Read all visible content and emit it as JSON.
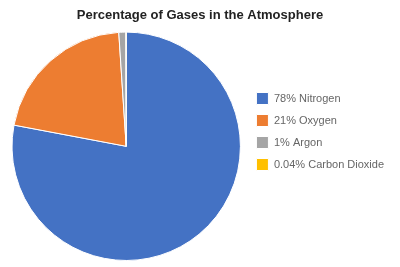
{
  "chart_data": {
    "type": "pie",
    "title": "Percentage of Gases in the Atmosphere",
    "categories": [
      "78% Nitrogen",
      "21% Oxygen",
      "1% Argon",
      "0.04% Carbon Dioxide"
    ],
    "values": [
      78,
      21,
      1,
      0.04
    ],
    "colors": [
      "#4472C4",
      "#ED7D31",
      "#A5A5A5",
      "#FFC000"
    ],
    "legend": "right"
  }
}
